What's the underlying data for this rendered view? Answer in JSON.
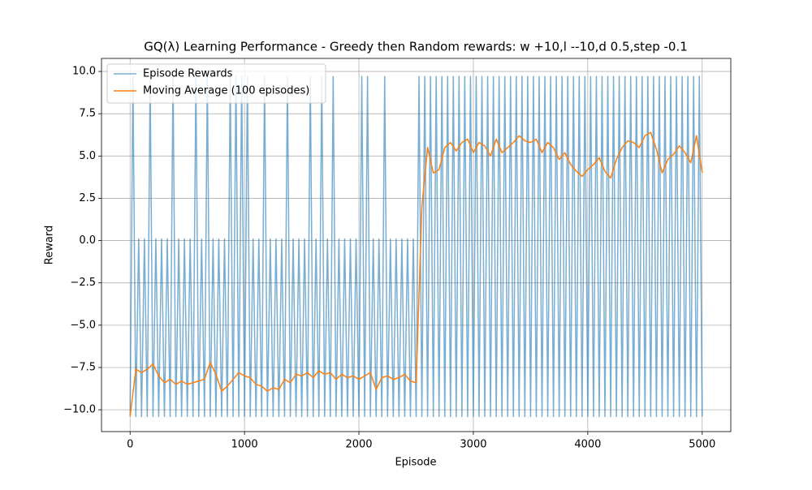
{
  "chart_data": {
    "type": "line",
    "title": "GQ(λ) Learning Performance - Greedy then Random rewards: w +10,l --10,d 0.5,step -0.1",
    "xlabel": "Episode",
    "ylabel": "Reward",
    "xlim": [
      -250,
      5250
    ],
    "ylim": [
      -11.29,
      10.77
    ],
    "xticks": [
      0,
      1000,
      2000,
      3000,
      4000,
      5000
    ],
    "yticks": [
      {
        "value": -10,
        "label": "−10.0"
      },
      {
        "value": -7.5,
        "label": "−7.5"
      },
      {
        "value": -5,
        "label": "−5.0"
      },
      {
        "value": -2.5,
        "label": "−2.5"
      },
      {
        "value": 0,
        "label": "0.0"
      },
      {
        "value": 2.5,
        "label": "2.5"
      },
      {
        "value": 5,
        "label": "5.0"
      },
      {
        "value": 7.5,
        "label": "7.5"
      },
      {
        "value": 10,
        "label": "10.0"
      }
    ],
    "grid": true,
    "legend": "upper-left",
    "series": [
      {
        "name": "Episode Rewards",
        "color": "#1f77b4",
        "opacity": 0.6,
        "x": [
          0,
          25,
          50,
          75,
          100,
          125,
          150,
          175,
          200,
          225,
          250,
          275,
          300,
          325,
          350,
          375,
          400,
          425,
          450,
          475,
          500,
          525,
          550,
          575,
          600,
          625,
          650,
          675,
          700,
          725,
          750,
          775,
          800,
          825,
          850,
          875,
          900,
          925,
          950,
          975,
          1000,
          1025,
          1050,
          1075,
          1100,
          1125,
          1150,
          1175,
          1200,
          1225,
          1250,
          1275,
          1300,
          1325,
          1350,
          1375,
          1400,
          1425,
          1450,
          1475,
          1500,
          1525,
          1550,
          1575,
          1600,
          1625,
          1650,
          1675,
          1700,
          1725,
          1750,
          1775,
          1800,
          1825,
          1850,
          1875,
          1900,
          1925,
          1950,
          1975,
          2000,
          2025,
          2050,
          2075,
          2100,
          2125,
          2150,
          2175,
          2200,
          2225,
          2250,
          2275,
          2300,
          2325,
          2350,
          2375,
          2400,
          2425,
          2450,
          2475,
          2500,
          2525,
          2550,
          2575,
          2600,
          2625,
          2650,
          2675,
          2700,
          2725,
          2750,
          2775,
          2800,
          2825,
          2850,
          2875,
          2900,
          2925,
          2950,
          2975,
          3000,
          3025,
          3050,
          3075,
          3100,
          3125,
          3150,
          3175,
          3200,
          3225,
          3250,
          3275,
          3300,
          3325,
          3350,
          3375,
          3400,
          3425,
          3450,
          3475,
          3500,
          3525,
          3550,
          3575,
          3600,
          3625,
          3650,
          3675,
          3700,
          3725,
          3750,
          3775,
          3800,
          3825,
          3850,
          3875,
          3900,
          3925,
          3950,
          3975,
          4000,
          4025,
          4050,
          4075,
          4100,
          4125,
          4150,
          4175,
          4200,
          4225,
          4250,
          4275,
          4300,
          4325,
          4350,
          4375,
          4400,
          4425,
          4450,
          4475,
          4500,
          4525,
          4550,
          4575,
          4600,
          4625,
          4650,
          4675,
          4700,
          4725,
          4750,
          4775,
          4800,
          4825,
          4850,
          4875,
          4900,
          4925,
          4950,
          4975,
          5000
        ],
        "values": [
          -10.4,
          9.7,
          -10.4,
          0.1,
          -10.4,
          0.1,
          -10.4,
          9.7,
          -10.4,
          0.1,
          -10.4,
          0.1,
          -10.4,
          0.1,
          -10.4,
          9.7,
          -10.4,
          0.1,
          -10.4,
          0.1,
          -10.4,
          0.1,
          -10.4,
          9.7,
          -10.4,
          0.1,
          -10.4,
          9.7,
          -10.4,
          0.1,
          -10.4,
          0.1,
          -10.4,
          0.1,
          -10.4,
          9.7,
          -10.4,
          9.7,
          -10.4,
          9.7,
          -10.4,
          9.7,
          -10.4,
          0.1,
          -10.4,
          0.1,
          -10.4,
          9.7,
          -10.4,
          0.1,
          -10.4,
          0.1,
          -10.4,
          0.1,
          -10.4,
          9.7,
          -10.4,
          0.1,
          -10.4,
          0.1,
          -10.4,
          0.1,
          -10.4,
          9.7,
          -10.4,
          0.1,
          -10.4,
          9.7,
          -10.4,
          0.1,
          -10.4,
          9.7,
          -10.4,
          0.1,
          -10.4,
          0.1,
          -10.4,
          0.1,
          -10.4,
          0.1,
          -10.4,
          9.7,
          -10.4,
          9.7,
          -10.4,
          0.1,
          -10.4,
          0.1,
          -10.4,
          9.7,
          -10.4,
          0.1,
          -10.4,
          0.1,
          -10.4,
          0.1,
          -10.4,
          0.1,
          -10.4,
          0.1,
          -10.4,
          9.7,
          -10.4,
          9.7,
          -10.4,
          9.7,
          -10.4,
          9.7,
          -10.4,
          9.7,
          -10.4,
          9.7,
          -10.4,
          9.7,
          -10.4,
          9.7,
          -10.4,
          9.7,
          -10.4,
          9.7,
          -10.4,
          9.7,
          -10.4,
          9.7,
          -10.4,
          9.7,
          -10.4,
          9.7,
          -10.4,
          9.7,
          -10.4,
          9.7,
          -10.4,
          9.7,
          -10.4,
          9.7,
          -10.4,
          9.7,
          -10.4,
          9.7,
          -10.4,
          9.7,
          -10.4,
          9.7,
          -10.4,
          9.7,
          -10.4,
          9.7,
          -10.4,
          9.7,
          -10.4,
          9.7,
          -10.4,
          9.7,
          -10.4,
          9.7,
          -10.4,
          9.7,
          -10.4,
          9.7,
          -10.4,
          9.7,
          -10.4,
          9.7,
          -10.4,
          9.7,
          -10.4,
          9.7,
          -10.4,
          9.7,
          -10.4,
          9.7,
          -10.4,
          9.7,
          -10.4,
          9.7,
          -10.4,
          9.7,
          -10.4,
          9.7,
          -10.4,
          9.7,
          -10.4,
          9.7,
          -10.4,
          9.7,
          -10.4,
          9.7,
          -10.4,
          9.7,
          -10.4,
          9.7,
          -10.4,
          9.7,
          -10.4,
          9.7,
          -10.4,
          9.7,
          -10.4,
          9.7,
          -10.4
        ]
      },
      {
        "name": "Moving Average (100 episodes)",
        "color": "#ff7f0e",
        "opacity": 1,
        "x": [
          0,
          50,
          100,
          150,
          200,
          250,
          300,
          350,
          400,
          450,
          500,
          550,
          600,
          650,
          700,
          750,
          800,
          850,
          900,
          950,
          1000,
          1050,
          1100,
          1150,
          1200,
          1250,
          1300,
          1350,
          1400,
          1450,
          1500,
          1550,
          1600,
          1650,
          1700,
          1750,
          1800,
          1850,
          1900,
          1950,
          2000,
          2050,
          2100,
          2150,
          2200,
          2250,
          2300,
          2350,
          2400,
          2450,
          2500,
          2550,
          2600,
          2650,
          2700,
          2750,
          2800,
          2850,
          2900,
          2950,
          3000,
          3050,
          3100,
          3150,
          3200,
          3250,
          3300,
          3350,
          3400,
          3450,
          3500,
          3550,
          3600,
          3650,
          3700,
          3750,
          3800,
          3850,
          3900,
          3950,
          4000,
          4050,
          4100,
          4150,
          4200,
          4250,
          4300,
          4350,
          4400,
          4450,
          4500,
          4550,
          4600,
          4650,
          4700,
          4750,
          4800,
          4850,
          4900,
          4950,
          5000
        ],
        "values": [
          -10.4,
          -7.6,
          -7.8,
          -7.6,
          -7.3,
          -8.0,
          -8.4,
          -8.2,
          -8.5,
          -8.3,
          -8.5,
          -8.4,
          -8.3,
          -8.2,
          -7.2,
          -7.9,
          -8.9,
          -8.6,
          -8.2,
          -7.8,
          -8.0,
          -8.1,
          -8.5,
          -8.6,
          -8.9,
          -8.7,
          -8.8,
          -8.2,
          -8.4,
          -7.9,
          -8.0,
          -7.8,
          -8.1,
          -7.7,
          -7.9,
          -7.8,
          -8.2,
          -7.9,
          -8.1,
          -8.0,
          -8.2,
          -8.0,
          -7.8,
          -8.8,
          -8.1,
          -8.0,
          -8.2,
          -8.1,
          -7.9,
          -8.3,
          -8.4,
          2.0,
          5.5,
          4.0,
          4.2,
          5.5,
          5.8,
          5.3,
          5.8,
          6.0,
          5.2,
          5.8,
          5.6,
          5.0,
          6.0,
          5.2,
          5.5,
          5.8,
          6.2,
          5.9,
          5.8,
          6.0,
          5.2,
          5.8,
          5.5,
          4.8,
          5.2,
          4.5,
          4.1,
          3.8,
          4.2,
          4.5,
          4.9,
          4.1,
          3.7,
          4.8,
          5.5,
          5.9,
          5.8,
          5.5,
          6.2,
          6.4,
          5.4,
          4.0,
          4.8,
          5.1,
          5.6,
          5.2,
          4.6,
          6.2,
          4.0
        ]
      }
    ]
  }
}
